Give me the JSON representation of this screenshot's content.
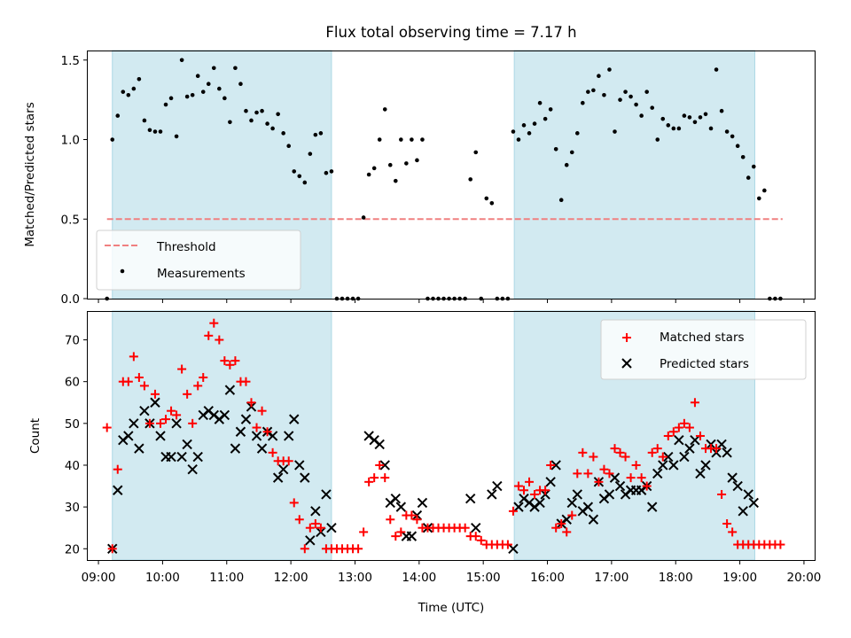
{
  "figure": {
    "title": "Flux total observing time = 7.17 h",
    "xlabel": "Time (UTC)",
    "x_tick_labels": [
      "09:00",
      "10:00",
      "11:00",
      "12:00",
      "13:00",
      "14:00",
      "15:00",
      "16:00",
      "17:00",
      "18:00",
      "19:00",
      "20:00"
    ]
  },
  "colors": {
    "shade": "#add8e6",
    "threshold": "#f08080",
    "matched": "#ff0000",
    "predicted": "#000000",
    "measurement": "#000000"
  },
  "chart_data": [
    {
      "type": "scatter",
      "ylabel": "Matched/Predicted stars",
      "xlim": [
        "08:50",
        "20:10"
      ],
      "ylim": [
        0,
        1.56
      ],
      "y_ticks": [
        "0.0",
        "0.5",
        "1.0",
        "1.5"
      ],
      "grid": false,
      "legend_position": "lower-left",
      "shaded_intervals": [
        [
          "09:13",
          "12:38"
        ],
        [
          "15:29",
          "19:14"
        ]
      ],
      "threshold": {
        "name": "Threshold",
        "value": 0.5,
        "x_range": [
          "09:08",
          "19:40"
        ]
      },
      "series": [
        {
          "name": "Measurements",
          "x": [
            "09:08",
            "09:13",
            "09:18",
            "09:23",
            "09:28",
            "09:33",
            "09:38",
            "09:43",
            "09:48",
            "09:53",
            "09:58",
            "10:03",
            "10:08",
            "10:13",
            "10:18",
            "10:23",
            "10:28",
            "10:33",
            "10:38",
            "10:43",
            "10:48",
            "10:53",
            "10:58",
            "11:03",
            "11:08",
            "11:13",
            "11:18",
            "11:23",
            "11:28",
            "11:33",
            "11:38",
            "11:43",
            "11:48",
            "11:53",
            "11:58",
            "12:03",
            "12:08",
            "12:13",
            "12:18",
            "12:23",
            "12:28",
            "12:33",
            "12:38",
            "12:43",
            "12:48",
            "12:53",
            "12:58",
            "13:03",
            "13:08",
            "13:13",
            "13:18",
            "13:23",
            "13:28",
            "13:33",
            "13:38",
            "13:43",
            "13:48",
            "13:53",
            "13:58",
            "14:03",
            "14:08",
            "14:13",
            "14:18",
            "14:23",
            "14:28",
            "14:33",
            "14:38",
            "14:43",
            "14:48",
            "14:53",
            "14:58",
            "15:03",
            "15:08",
            "15:13",
            "15:18",
            "15:23",
            "15:28",
            "15:33",
            "15:38",
            "15:43",
            "15:48",
            "15:53",
            "15:58",
            "16:03",
            "16:08",
            "16:13",
            "16:18",
            "16:23",
            "16:28",
            "16:33",
            "16:38",
            "16:43",
            "16:48",
            "16:53",
            "16:58",
            "17:03",
            "17:08",
            "17:13",
            "17:18",
            "17:23",
            "17:28",
            "17:33",
            "17:38",
            "17:43",
            "17:48",
            "17:53",
            "17:58",
            "18:03",
            "18:08",
            "18:13",
            "18:18",
            "18:23",
            "18:28",
            "18:33",
            "18:38",
            "18:43",
            "18:48",
            "18:53",
            "18:58",
            "19:03",
            "19:08",
            "19:13",
            "19:18",
            "19:23",
            "19:28",
            "19:33",
            "19:38"
          ],
          "y": [
            0.0,
            1.0,
            1.15,
            1.3,
            1.28,
            1.32,
            1.38,
            1.12,
            1.06,
            1.05,
            1.05,
            1.22,
            1.26,
            1.02,
            1.5,
            1.27,
            1.28,
            1.4,
            1.3,
            1.35,
            1.45,
            1.32,
            1.26,
            1.11,
            1.45,
            1.35,
            1.18,
            1.12,
            1.17,
            1.18,
            1.1,
            1.07,
            1.16,
            1.04,
            0.96,
            0.8,
            0.77,
            0.73,
            0.91,
            1.03,
            1.04,
            0.79,
            0.8,
            0.0,
            0.0,
            0.0,
            0.0,
            0.0,
            0.51,
            0.78,
            0.82,
            1.0,
            1.19,
            0.84,
            0.74,
            1.0,
            0.85,
            1.0,
            0.87,
            1.0,
            0.0,
            0.0,
            0.0,
            0.0,
            0.0,
            0.0,
            0.0,
            0.0,
            0.75,
            0.92,
            0.0,
            0.63,
            0.6,
            0.0,
            0.0,
            0.0,
            1.05,
            1.0,
            1.09,
            1.04,
            1.1,
            1.23,
            1.13,
            1.19,
            0.94,
            0.62,
            0.84,
            0.92,
            1.04,
            1.23,
            1.3,
            1.31,
            1.4,
            1.28,
            1.44,
            1.05,
            1.25,
            1.3,
            1.27,
            1.22,
            1.15,
            1.3,
            1.2,
            1.0,
            1.13,
            1.09,
            1.07,
            1.07,
            1.15,
            1.14,
            1.11,
            1.14,
            1.16,
            1.07,
            1.44,
            1.18,
            1.05,
            1.02,
            0.96,
            0.89,
            0.76,
            0.83,
            0.63,
            0.68,
            0.0,
            0.0,
            0.0
          ]
        }
      ]
    },
    {
      "type": "scatter",
      "ylabel": "Count",
      "xlim": [
        "08:50",
        "20:10"
      ],
      "ylim": [
        17.3,
        76.9
      ],
      "y_ticks": [
        "20",
        "30",
        "40",
        "50",
        "60",
        "70"
      ],
      "grid": false,
      "legend_position": "upper-right",
      "shaded_intervals": [
        [
          "09:13",
          "12:38"
        ],
        [
          "15:29",
          "19:14"
        ]
      ],
      "series": [
        {
          "name": "Matched stars",
          "marker": "plus",
          "x": [
            "09:08",
            "09:13",
            "09:18",
            "09:23",
            "09:28",
            "09:33",
            "09:38",
            "09:43",
            "09:48",
            "09:53",
            "09:58",
            "10:03",
            "10:08",
            "10:13",
            "10:18",
            "10:23",
            "10:28",
            "10:33",
            "10:38",
            "10:43",
            "10:48",
            "10:53",
            "10:58",
            "11:03",
            "11:08",
            "11:13",
            "11:18",
            "11:23",
            "11:28",
            "11:33",
            "11:38",
            "11:43",
            "11:48",
            "11:53",
            "11:58",
            "12:03",
            "12:08",
            "12:13",
            "12:18",
            "12:23",
            "12:28",
            "12:33",
            "12:38",
            "12:43",
            "12:48",
            "12:53",
            "12:58",
            "13:03",
            "13:08",
            "13:13",
            "13:18",
            "13:23",
            "13:28",
            "13:33",
            "13:38",
            "13:43",
            "13:48",
            "13:53",
            "13:58",
            "14:03",
            "14:08",
            "14:13",
            "14:18",
            "14:23",
            "14:28",
            "14:33",
            "14:38",
            "14:43",
            "14:48",
            "14:53",
            "14:58",
            "15:03",
            "15:08",
            "15:13",
            "15:18",
            "15:23",
            "15:28",
            "15:33",
            "15:38",
            "15:43",
            "15:48",
            "15:53",
            "15:58",
            "16:03",
            "16:08",
            "16:13",
            "16:18",
            "16:23",
            "16:28",
            "16:33",
            "16:38",
            "16:43",
            "16:48",
            "16:53",
            "16:58",
            "17:03",
            "17:08",
            "17:13",
            "17:18",
            "17:23",
            "17:28",
            "17:33",
            "17:38",
            "17:43",
            "17:48",
            "17:53",
            "17:58",
            "18:03",
            "18:08",
            "18:13",
            "18:18",
            "18:23",
            "18:28",
            "18:33",
            "18:38",
            "18:43",
            "18:48",
            "18:53",
            "18:58",
            "19:03",
            "19:08",
            "19:13",
            "19:18",
            "19:23",
            "19:28",
            "19:33",
            "19:38"
          ],
          "y": [
            49,
            20,
            39,
            60,
            60,
            66,
            61,
            59,
            50,
            57,
            50,
            51,
            53,
            52,
            63,
            57,
            50,
            59,
            61,
            71,
            74,
            70,
            65,
            64,
            65,
            60,
            60,
            55,
            49,
            53,
            48,
            43,
            41,
            41,
            41,
            31,
            27,
            20,
            25,
            26,
            25,
            20,
            20,
            20,
            20,
            20,
            20,
            20,
            24,
            36,
            37,
            40,
            37,
            27,
            23,
            24,
            28,
            28,
            27,
            25,
            25,
            25,
            25,
            25,
            25,
            25,
            25,
            25,
            23,
            23,
            22,
            21,
            21,
            21,
            21,
            21,
            29,
            35,
            34,
            36,
            33,
            34,
            34,
            40,
            25,
            26,
            24,
            28,
            38,
            43,
            38,
            42,
            36,
            39,
            38,
            44,
            43,
            42,
            37,
            40,
            37,
            35,
            43,
            44,
            42,
            47,
            48,
            49,
            50,
            49,
            55,
            47,
            44,
            44,
            44,
            33,
            26,
            24,
            21,
            21,
            21,
            21,
            21,
            21,
            21,
            21,
            21
          ]
        },
        {
          "name": "Predicted stars",
          "marker": "x",
          "x": [
            "09:13",
            "09:18",
            "09:23",
            "09:28",
            "09:33",
            "09:38",
            "09:43",
            "09:48",
            "09:53",
            "09:58",
            "10:03",
            "10:08",
            "10:13",
            "10:18",
            "10:23",
            "10:28",
            "10:33",
            "10:38",
            "10:43",
            "10:48",
            "10:53",
            "10:58",
            "11:03",
            "11:08",
            "11:13",
            "11:18",
            "11:23",
            "11:28",
            "11:33",
            "11:38",
            "11:43",
            "11:48",
            "11:53",
            "11:58",
            "12:03",
            "12:08",
            "12:13",
            "12:18",
            "12:23",
            "12:28",
            "12:33",
            "12:38",
            "13:13",
            "13:18",
            "13:23",
            "13:28",
            "13:33",
            "13:38",
            "13:43",
            "13:48",
            "13:53",
            "13:58",
            "14:03",
            "14:08",
            "14:48",
            "14:53",
            "15:08",
            "15:13",
            "15:28",
            "15:33",
            "15:38",
            "15:43",
            "15:48",
            "15:53",
            "15:58",
            "16:03",
            "16:08",
            "16:13",
            "16:18",
            "16:23",
            "16:28",
            "16:33",
            "16:38",
            "16:43",
            "16:48",
            "16:53",
            "16:58",
            "17:03",
            "17:08",
            "17:13",
            "17:18",
            "17:23",
            "17:28",
            "17:33",
            "17:38",
            "17:43",
            "17:48",
            "17:53",
            "17:58",
            "18:03",
            "18:08",
            "18:13",
            "18:18",
            "18:23",
            "18:28",
            "18:33",
            "18:38",
            "18:43",
            "18:48",
            "18:53",
            "18:58",
            "19:03",
            "19:08",
            "19:13"
          ],
          "y": [
            20,
            34,
            46,
            47,
            50,
            44,
            53,
            50,
            55,
            47,
            42,
            42,
            50,
            42,
            45,
            39,
            42,
            52,
            53,
            52,
            51,
            52,
            58,
            44,
            48,
            51,
            54,
            47,
            44,
            48,
            47,
            37,
            39,
            47,
            51,
            40,
            37,
            22,
            29,
            24,
            33,
            25,
            47,
            46,
            45,
            40,
            31,
            32,
            30,
            23,
            23,
            28,
            31,
            25,
            32,
            25,
            33,
            35,
            20,
            30,
            32,
            31,
            30,
            31,
            33,
            36,
            40,
            26,
            27,
            31,
            33,
            29,
            30,
            27,
            36,
            32,
            33,
            37,
            35,
            33,
            34,
            34,
            34,
            35,
            30,
            38,
            40,
            42,
            40,
            46,
            42,
            44,
            46,
            38,
            40,
            45,
            43,
            45,
            43,
            37,
            35,
            29,
            33,
            31
          ]
        }
      ]
    }
  ]
}
